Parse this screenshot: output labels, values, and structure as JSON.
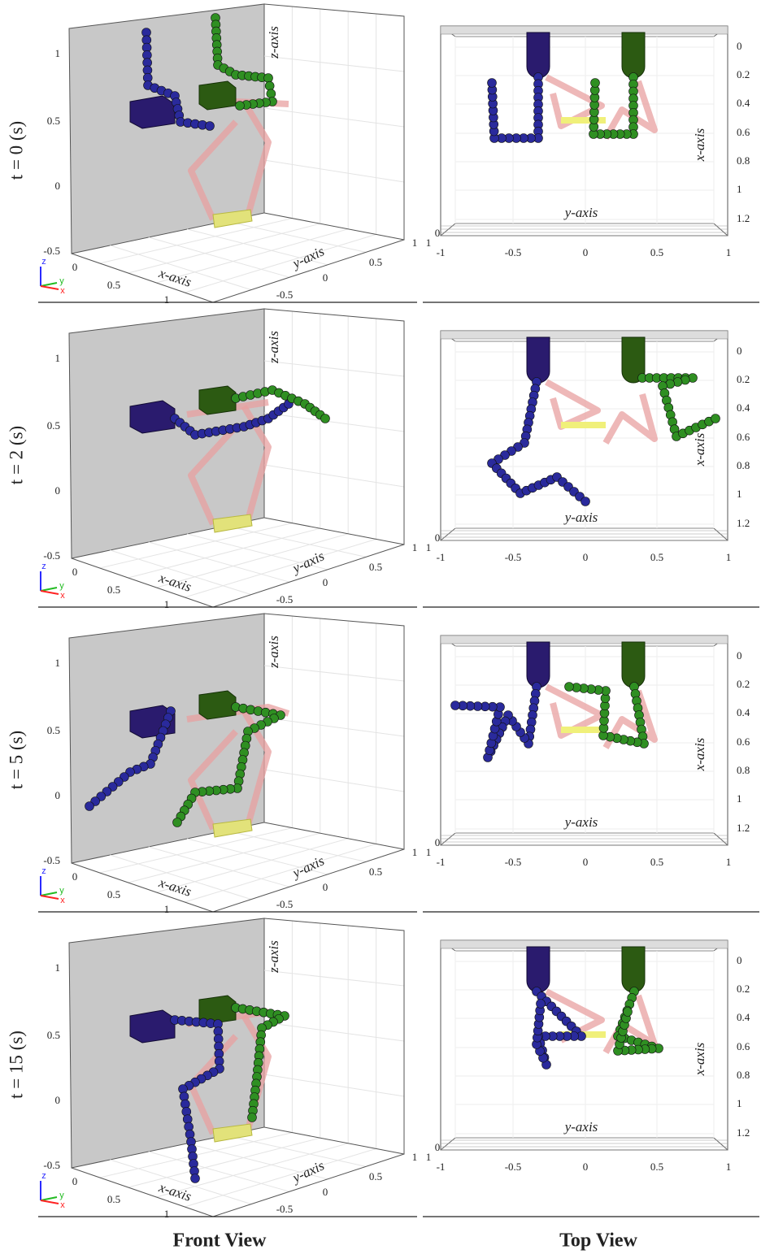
{
  "rows": [
    {
      "time_label": "t = 0 (s)"
    },
    {
      "time_label": "t = 2 (s)"
    },
    {
      "time_label": "t = 5 (s)"
    },
    {
      "time_label": "t = 15 (s)"
    }
  ],
  "front_view": {
    "title": "Front View",
    "x_axis_label": "x-axis",
    "y_axis_label": "y-axis",
    "z_axis_label": "z-axis",
    "x_ticks": [
      "0",
      "0.5",
      "1"
    ],
    "y_ticks": [
      "-0.5",
      "0",
      "0.5",
      "1"
    ],
    "z_ticks": [
      "-0.5",
      "0",
      "0.5",
      "1"
    ],
    "triad": [
      "x",
      "y",
      "z"
    ]
  },
  "top_view": {
    "title": "Top View",
    "x_axis_label": "x-axis",
    "y_axis_label": "y-axis",
    "x_ticks": [
      "0",
      "0.2",
      "0.4",
      "0.6",
      "0.8",
      "1",
      "1.2"
    ],
    "y_ticks": [
      "-1",
      "-0.5",
      "0",
      "0.5",
      "1"
    ],
    "corner_ticks": [
      "1",
      "0"
    ]
  }
}
